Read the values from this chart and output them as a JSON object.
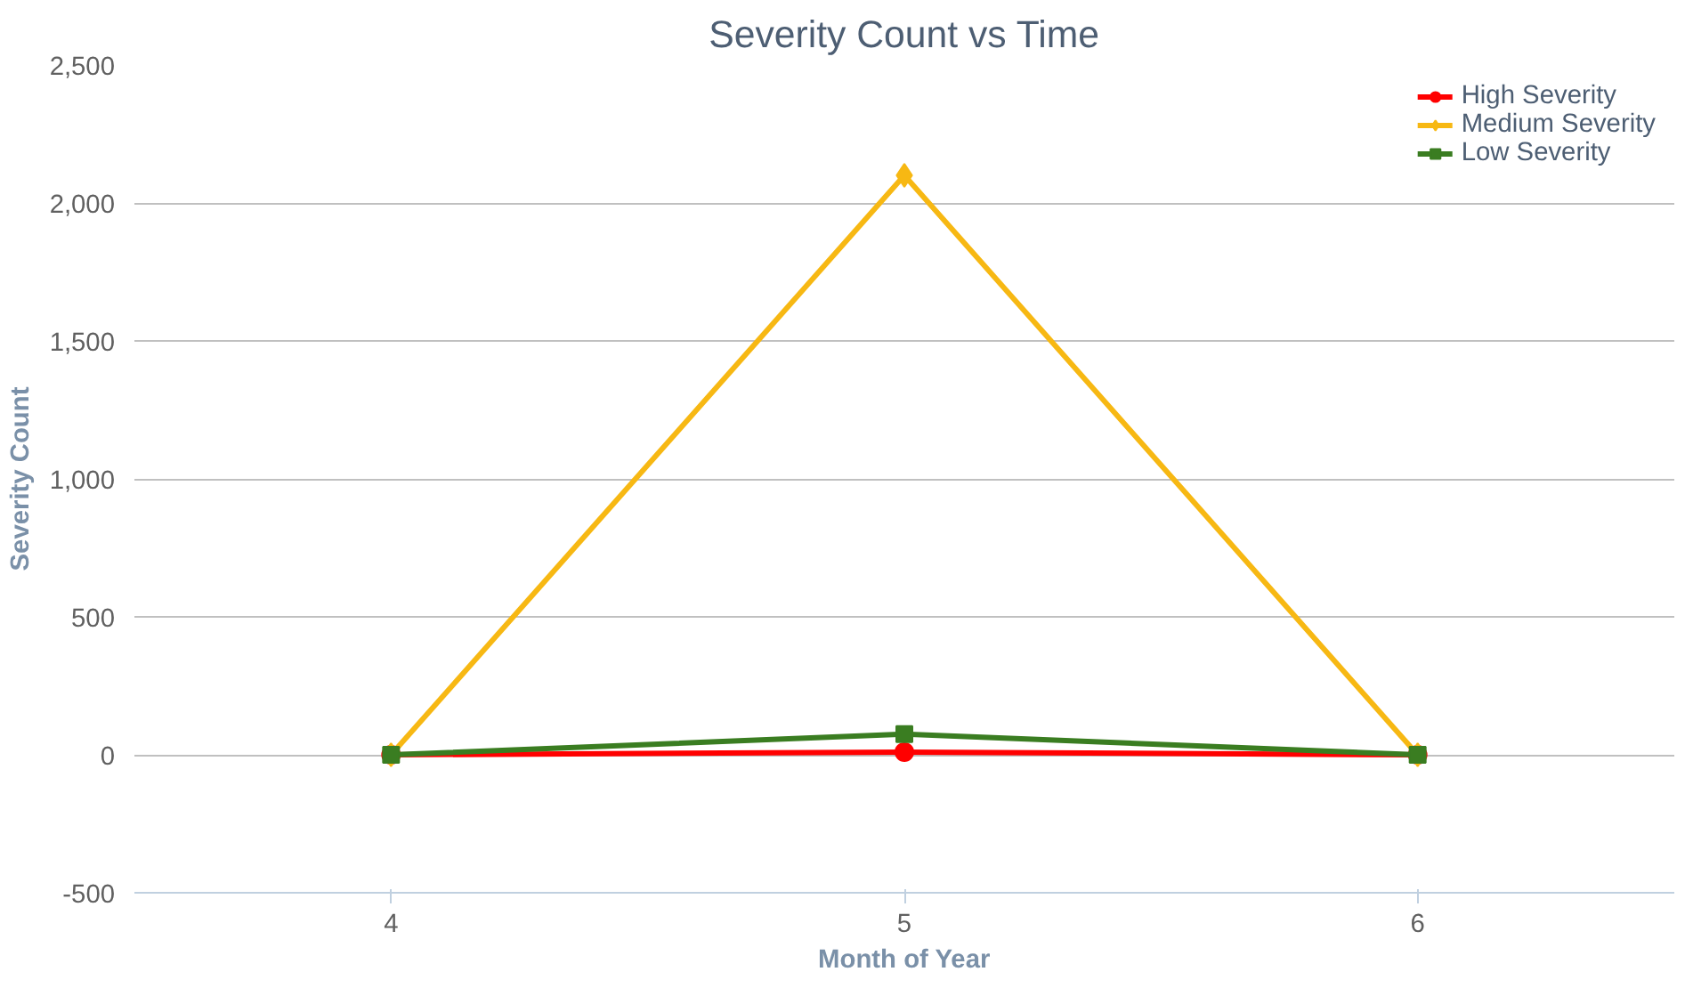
{
  "chart_data": {
    "type": "line",
    "title": "Severity Count vs Time",
    "xlabel": "Month of Year",
    "ylabel": "Severity Count",
    "categories": [
      "4",
      "5",
      "6"
    ],
    "series": [
      {
        "name": "High Severity",
        "color": "#ff0000",
        "values": [
          0,
          10,
          0
        ],
        "marker": "circle"
      },
      {
        "name": "Medium Severity",
        "color": "#f7b813",
        "values": [
          0,
          2100,
          0
        ],
        "marker": "diamond"
      },
      {
        "name": "Low Severity",
        "color": "#3a7d21",
        "values": [
          0,
          75,
          0
        ],
        "marker": "square"
      }
    ],
    "ylim": [
      -500,
      2500
    ],
    "yticks": [
      -500,
      0,
      500,
      {
        "value": 1000,
        "label": "1,000"
      },
      {
        "value": 1500,
        "label": "1,500"
      },
      {
        "value": 2000,
        "label": "2,000"
      },
      {
        "value": 2500,
        "label": "2,500"
      }
    ],
    "grid": "y",
    "legend": "top right",
    "line_style": "solid"
  }
}
